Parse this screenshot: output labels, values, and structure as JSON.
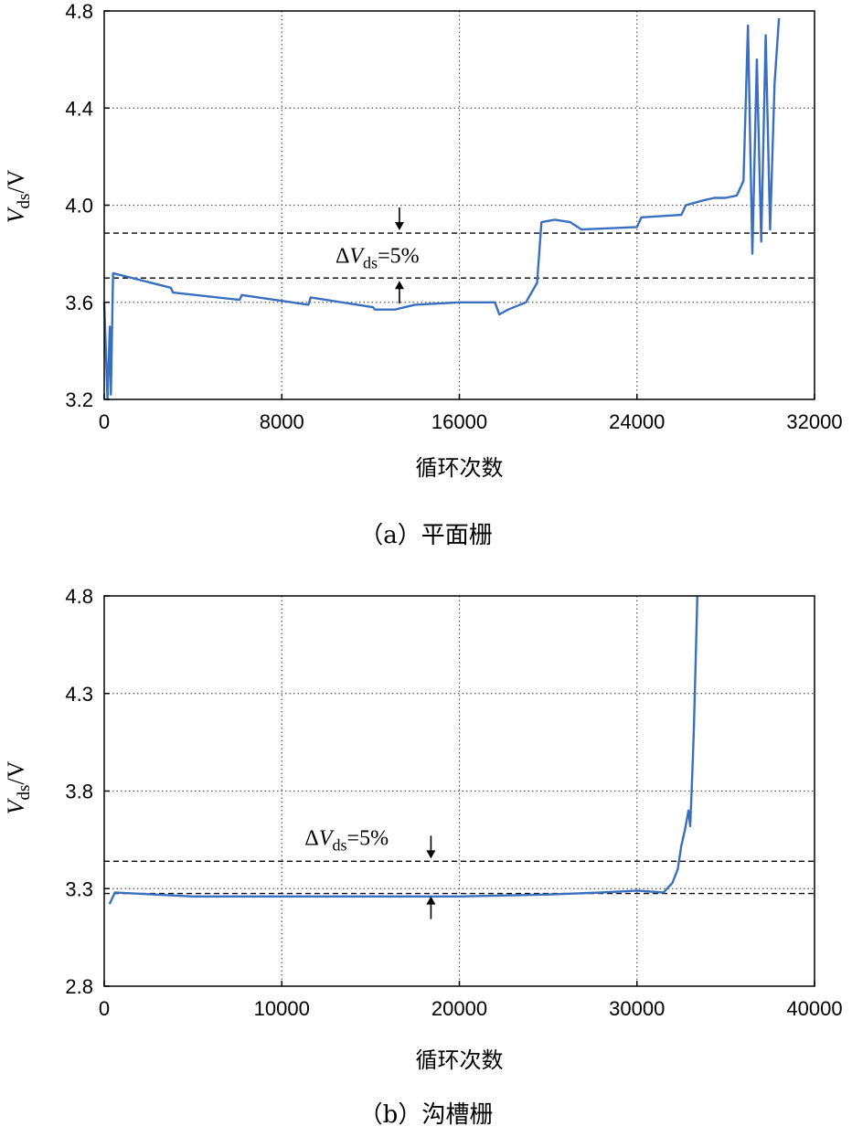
{
  "colors": {
    "series": "#3a6fc0",
    "axis": "#000000",
    "grid": "#555555"
  },
  "chart_data": [
    {
      "type": "line",
      "caption": "（a）平面栅",
      "xlabel": "循环次数",
      "ylabel_main": "V",
      "ylabel_sub": "ds",
      "ylabel_unit": "/V",
      "xlim": [
        0,
        32000
      ],
      "ylim": [
        3.2,
        4.8
      ],
      "xticks": [
        0,
        8000,
        16000,
        24000,
        32000
      ],
      "xtick_labels": [
        "0",
        "8000",
        "16000",
        "24000",
        "32000"
      ],
      "yticks": [
        3.2,
        3.6,
        4.0,
        4.4,
        4.8
      ],
      "ytick_labels": [
        "3.2",
        "3.6",
        "4.0",
        "4.4",
        "4.8"
      ],
      "grid": true,
      "reference_lines": [
        3.7,
        3.885
      ],
      "annotation": {
        "prefix": "ΔV",
        "sub": "ds",
        "suffix": "=5%"
      },
      "arrow_x": 13300,
      "series": [
        {
          "x": [
            0,
            150,
            250,
            300,
            400,
            3000,
            3100,
            6100,
            6200,
            9200,
            9300,
            12100,
            12200,
            13100,
            14000,
            16000,
            17600,
            17800,
            18200,
            19000,
            19500,
            19700,
            20300,
            21000,
            21500,
            24000,
            24200,
            26000,
            26200,
            27000,
            27500,
            28000,
            28500,
            28800,
            29000,
            29200,
            29400,
            29600,
            29800,
            30000,
            30200,
            30400
          ],
          "y": [
            3.6,
            3.2,
            3.5,
            3.22,
            3.72,
            3.66,
            3.64,
            3.61,
            3.63,
            3.59,
            3.62,
            3.58,
            3.57,
            3.57,
            3.59,
            3.6,
            3.6,
            3.55,
            3.57,
            3.6,
            3.68,
            3.93,
            3.94,
            3.93,
            3.9,
            3.91,
            3.95,
            3.96,
            4.0,
            4.02,
            4.03,
            4.03,
            4.04,
            4.1,
            4.74,
            3.8,
            4.6,
            3.85,
            4.7,
            3.9,
            4.5,
            4.77
          ]
        }
      ]
    },
    {
      "type": "line",
      "caption": "（b）沟槽栅",
      "xlabel": "循环次数",
      "ylabel_main": "V",
      "ylabel_sub": "ds",
      "ylabel_unit": "/V",
      "xlim": [
        0,
        40000
      ],
      "ylim": [
        2.8,
        4.8
      ],
      "xticks": [
        0,
        10000,
        20000,
        30000,
        40000
      ],
      "xtick_labels": [
        "0",
        "10000",
        "20000",
        "30000",
        "40000"
      ],
      "yticks": [
        2.8,
        3.3,
        3.8,
        4.3,
        4.8
      ],
      "ytick_labels": [
        "2.8",
        "3.3",
        "3.8",
        "4.3",
        "4.8"
      ],
      "grid": true,
      "reference_lines": [
        3.275,
        3.44
      ],
      "annotation": {
        "prefix": "ΔV",
        "sub": "ds",
        "suffix": "=5%"
      },
      "arrow_x": 18400,
      "series": [
        {
          "x": [
            300,
            600,
            5000,
            10000,
            15000,
            20000,
            25000,
            28000,
            30000,
            31500,
            32000,
            32300,
            32500,
            32700,
            32900,
            33000,
            33100,
            33200,
            33300,
            33400
          ],
          "y": [
            3.22,
            3.28,
            3.26,
            3.26,
            3.26,
            3.26,
            3.27,
            3.28,
            3.29,
            3.28,
            3.33,
            3.4,
            3.52,
            3.6,
            3.7,
            3.62,
            3.85,
            4.1,
            4.45,
            4.8
          ]
        }
      ]
    }
  ]
}
